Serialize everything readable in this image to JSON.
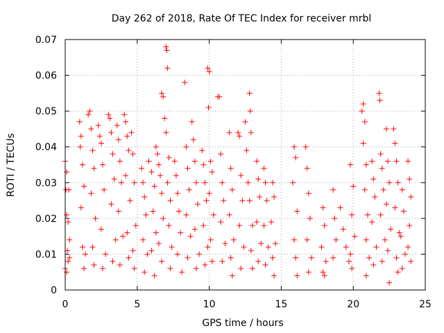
{
  "chart_data": {
    "type": "scatter",
    "title": "Day 262 of 2018, Rate Of TEC Index for receiver mrbl",
    "xlabel": "GPS time / hours",
    "ylabel": "ROTI / TECUs",
    "xlim": [
      0,
      25
    ],
    "ylim": [
      0,
      0.07
    ],
    "x_ticks": [
      0,
      5,
      10,
      15,
      20,
      25
    ],
    "y_ticks": [
      0,
      0.01,
      0.02,
      0.03,
      0.04,
      0.05,
      0.06,
      0.07
    ],
    "x_tick_labels": [
      "0",
      "5",
      "10",
      "15",
      "20",
      "25"
    ],
    "y_tick_labels": [
      "0",
      "0.01",
      "0.02",
      "0.03",
      "0.04",
      "0.05",
      "0.06",
      "0.07"
    ],
    "grid": true,
    "marker": "+",
    "marker_color": "#ff0000",
    "series": [
      {
        "name": "ROTI",
        "points": [
          [
            0.0,
            0.036
          ],
          [
            0.05,
            0.028
          ],
          [
            0.1,
            0.033
          ],
          [
            0.1,
            0.021
          ],
          [
            0.15,
            0.011
          ],
          [
            0.2,
            0.008
          ],
          [
            0.25,
            0.028
          ],
          [
            0.3,
            0.014
          ],
          [
            0.0,
            0.006
          ],
          [
            0.1,
            0.005
          ],
          [
            0.2,
            0.019
          ],
          [
            0.3,
            0.009
          ],
          [
            1.0,
            0.047
          ],
          [
            1.05,
            0.04
          ],
          [
            1.1,
            0.043
          ],
          [
            1.2,
            0.035
          ],
          [
            1.3,
            0.029
          ],
          [
            1.1,
            0.023
          ],
          [
            1.2,
            0.012
          ],
          [
            1.4,
            0.01
          ],
          [
            1.3,
            0.006
          ],
          [
            1.7,
            0.05
          ],
          [
            1.6,
            0.049
          ],
          [
            1.8,
            0.045
          ],
          [
            1.9,
            0.039
          ],
          [
            2.0,
            0.034
          ],
          [
            1.8,
            0.027
          ],
          [
            2.1,
            0.02
          ],
          [
            1.9,
            0.012
          ],
          [
            2.0,
            0.007
          ],
          [
            2.3,
            0.046
          ],
          [
            2.4,
            0.043
          ],
          [
            2.5,
            0.041
          ],
          [
            2.6,
            0.035
          ],
          [
            2.7,
            0.028
          ],
          [
            2.5,
            0.017
          ],
          [
            2.8,
            0.01
          ],
          [
            2.6,
            0.006
          ],
          [
            3.0,
            0.049
          ],
          [
            3.1,
            0.048
          ],
          [
            3.2,
            0.044
          ],
          [
            3.3,
            0.038
          ],
          [
            3.4,
            0.031
          ],
          [
            3.2,
            0.024
          ],
          [
            3.5,
            0.014
          ],
          [
            3.3,
            0.008
          ],
          [
            3.6,
            0.046
          ],
          [
            3.7,
            0.042
          ],
          [
            3.8,
            0.036
          ],
          [
            3.9,
            0.03
          ],
          [
            3.7,
            0.022
          ],
          [
            4.0,
            0.015
          ],
          [
            3.8,
            0.007
          ],
          [
            4.1,
            0.049
          ],
          [
            4.2,
            0.047
          ],
          [
            4.3,
            0.043
          ],
          [
            4.4,
            0.039
          ],
          [
            4.2,
            0.032
          ],
          [
            4.5,
            0.025
          ],
          [
            4.3,
            0.016
          ],
          [
            4.4,
            0.009
          ],
          [
            4.6,
            0.044
          ],
          [
            4.7,
            0.038
          ],
          [
            4.8,
            0.03
          ],
          [
            4.9,
            0.018
          ],
          [
            4.7,
            0.011
          ],
          [
            4.8,
            0.006
          ],
          [
            5.3,
            0.034
          ],
          [
            5.4,
            0.03
          ],
          [
            5.5,
            0.026
          ],
          [
            5.6,
            0.021
          ],
          [
            5.4,
            0.014
          ],
          [
            5.7,
            0.01
          ],
          [
            5.5,
            0.005
          ],
          [
            5.8,
            0.036
          ],
          [
            6.0,
            0.033
          ],
          [
            6.2,
            0.029
          ],
          [
            6.1,
            0.022
          ],
          [
            6.3,
            0.016
          ],
          [
            6.0,
            0.011
          ],
          [
            6.2,
            0.004
          ],
          [
            6.3,
            0.04
          ],
          [
            6.4,
            0.038
          ],
          [
            6.5,
            0.035
          ],
          [
            6.6,
            0.032
          ],
          [
            6.7,
            0.027
          ],
          [
            6.8,
            0.02
          ],
          [
            6.5,
            0.013
          ],
          [
            6.7,
            0.008
          ],
          [
            6.7,
            0.055
          ],
          [
            6.8,
            0.054
          ],
          [
            6.9,
            0.048
          ],
          [
            7.0,
            0.068
          ],
          [
            7.05,
            0.067
          ],
          [
            7.1,
            0.062
          ],
          [
            7.0,
            0.044
          ],
          [
            7.2,
            0.037
          ],
          [
            7.1,
            0.03
          ],
          [
            7.3,
            0.025
          ],
          [
            7.2,
            0.018
          ],
          [
            7.4,
            0.012
          ],
          [
            7.3,
            0.006
          ],
          [
            7.6,
            0.036
          ],
          [
            7.7,
            0.032
          ],
          [
            7.8,
            0.027
          ],
          [
            7.9,
            0.022
          ],
          [
            8.0,
            0.016
          ],
          [
            7.8,
            0.01
          ],
          [
            8.1,
            0.005
          ],
          [
            8.3,
            0.058
          ],
          [
            8.4,
            0.04
          ],
          [
            8.5,
            0.034
          ],
          [
            8.6,
            0.028
          ],
          [
            8.4,
            0.021
          ],
          [
            8.7,
            0.015
          ],
          [
            8.5,
            0.009
          ],
          [
            8.8,
            0.047
          ],
          [
            8.9,
            0.042
          ],
          [
            9.0,
            0.036
          ],
          [
            9.1,
            0.03
          ],
          [
            9.2,
            0.024
          ],
          [
            9.0,
            0.017
          ],
          [
            9.3,
            0.01
          ],
          [
            9.1,
            0.006
          ],
          [
            9.5,
            0.039
          ],
          [
            9.6,
            0.035
          ],
          [
            9.7,
            0.03
          ],
          [
            9.8,
            0.025
          ],
          [
            9.6,
            0.018
          ],
          [
            9.9,
            0.012
          ],
          [
            9.7,
            0.007
          ],
          [
            9.9,
            0.062
          ],
          [
            10.0,
            0.061
          ],
          [
            9.95,
            0.051
          ],
          [
            10.1,
            0.036
          ],
          [
            10.2,
            0.033
          ],
          [
            10.0,
            0.027
          ],
          [
            10.3,
            0.021
          ],
          [
            10.1,
            0.014
          ],
          [
            10.2,
            0.008
          ],
          [
            10.6,
            0.054
          ],
          [
            10.7,
            0.054
          ],
          [
            10.8,
            0.038
          ],
          [
            10.9,
            0.03
          ],
          [
            11.0,
            0.025
          ],
          [
            10.8,
            0.019
          ],
          [
            11.1,
            0.013
          ],
          [
            10.9,
            0.008
          ],
          [
            11.4,
            0.044
          ],
          [
            11.5,
            0.034
          ],
          [
            11.6,
            0.028
          ],
          [
            11.4,
            0.021
          ],
          [
            11.7,
            0.014
          ],
          [
            11.5,
            0.009
          ],
          [
            11.6,
            0.004
          ],
          [
            12.0,
            0.044
          ],
          [
            12.1,
            0.043
          ],
          [
            12.2,
            0.032
          ],
          [
            12.3,
            0.025
          ],
          [
            12.1,
            0.018
          ],
          [
            12.4,
            0.012
          ],
          [
            12.2,
            0.006
          ],
          [
            12.5,
            0.047
          ],
          [
            12.6,
            0.039
          ],
          [
            12.7,
            0.03
          ],
          [
            12.8,
            0.055
          ],
          [
            12.85,
            0.05
          ],
          [
            12.9,
            0.044
          ],
          [
            12.8,
            0.025
          ],
          [
            13.0,
            0.018
          ],
          [
            12.9,
            0.011
          ],
          [
            13.0,
            0.006
          ],
          [
            13.3,
            0.036
          ],
          [
            13.4,
            0.031
          ],
          [
            13.5,
            0.026
          ],
          [
            13.3,
            0.019
          ],
          [
            13.6,
            0.013
          ],
          [
            13.4,
            0.008
          ],
          [
            13.8,
            0.034
          ],
          [
            13.9,
            0.03
          ],
          [
            14.0,
            0.025
          ],
          [
            13.8,
            0.018
          ],
          [
            14.1,
            0.012
          ],
          [
            13.9,
            0.007
          ],
          [
            14.4,
            0.03
          ],
          [
            14.5,
            0.026
          ],
          [
            14.3,
            0.019
          ],
          [
            14.6,
            0.013
          ],
          [
            14.4,
            0.009
          ],
          [
            14.5,
            0.004
          ],
          [
            15.9,
            0.04
          ],
          [
            16.0,
            0.037
          ],
          [
            15.8,
            0.03
          ],
          [
            16.1,
            0.022
          ],
          [
            15.9,
            0.014
          ],
          [
            16.0,
            0.009
          ],
          [
            16.1,
            0.004
          ],
          [
            16.7,
            0.04
          ],
          [
            16.8,
            0.034
          ],
          [
            16.9,
            0.027
          ],
          [
            17.0,
            0.02
          ],
          [
            16.8,
            0.014
          ],
          [
            17.1,
            0.009
          ],
          [
            16.9,
            0.005
          ],
          [
            17.9,
            0.023
          ],
          [
            18.0,
            0.018
          ],
          [
            17.8,
            0.012
          ],
          [
            18.1,
            0.008
          ],
          [
            17.9,
            0.005
          ],
          [
            18.0,
            0.004
          ],
          [
            18.6,
            0.028
          ],
          [
            18.7,
            0.02
          ],
          [
            18.8,
            0.014
          ],
          [
            18.6,
            0.009
          ],
          [
            19.1,
            0.023
          ],
          [
            19.3,
            0.017
          ],
          [
            19.5,
            0.012
          ],
          [
            19.7,
            0.008
          ],
          [
            19.9,
            0.006
          ],
          [
            19.8,
            0.035
          ],
          [
            20.0,
            0.029
          ],
          [
            19.9,
            0.021
          ],
          [
            20.1,
            0.015
          ],
          [
            19.8,
            0.01
          ],
          [
            20.6,
            0.05
          ],
          [
            20.7,
            0.052
          ],
          [
            20.8,
            0.047
          ],
          [
            20.7,
            0.041
          ],
          [
            20.9,
            0.035
          ],
          [
            20.8,
            0.028
          ],
          [
            21.0,
            0.021
          ],
          [
            20.9,
            0.014
          ],
          [
            21.1,
            0.009
          ],
          [
            20.9,
            0.004
          ],
          [
            21.3,
            0.036
          ],
          [
            21.4,
            0.031
          ],
          [
            21.5,
            0.026
          ],
          [
            21.3,
            0.019
          ],
          [
            21.6,
            0.012
          ],
          [
            21.4,
            0.007
          ],
          [
            21.8,
            0.055
          ],
          [
            21.85,
            0.053
          ],
          [
            21.9,
            0.038
          ],
          [
            22.0,
            0.034
          ],
          [
            22.1,
            0.028
          ],
          [
            21.9,
            0.021
          ],
          [
            22.2,
            0.014
          ],
          [
            22.0,
            0.008
          ],
          [
            22.3,
            0.045
          ],
          [
            22.4,
            0.036
          ],
          [
            22.5,
            0.03
          ],
          [
            22.3,
            0.024
          ],
          [
            22.6,
            0.017
          ],
          [
            22.4,
            0.011
          ],
          [
            22.5,
            0.002
          ],
          [
            22.8,
            0.045
          ],
          [
            22.9,
            0.041
          ],
          [
            23.0,
            0.036
          ],
          [
            23.1,
            0.03
          ],
          [
            22.9,
            0.023
          ],
          [
            23.2,
            0.016
          ],
          [
            23.0,
            0.009
          ],
          [
            23.1,
            0.005
          ],
          [
            23.4,
            0.028
          ],
          [
            23.5,
            0.022
          ],
          [
            23.3,
            0.015
          ],
          [
            23.6,
            0.01
          ],
          [
            23.4,
            0.006
          ],
          [
            23.8,
            0.036
          ],
          [
            23.9,
            0.031
          ],
          [
            24.0,
            0.026
          ],
          [
            23.9,
            0.018
          ],
          [
            23.8,
            0.012
          ],
          [
            24.0,
            0.008
          ]
        ]
      }
    ]
  }
}
